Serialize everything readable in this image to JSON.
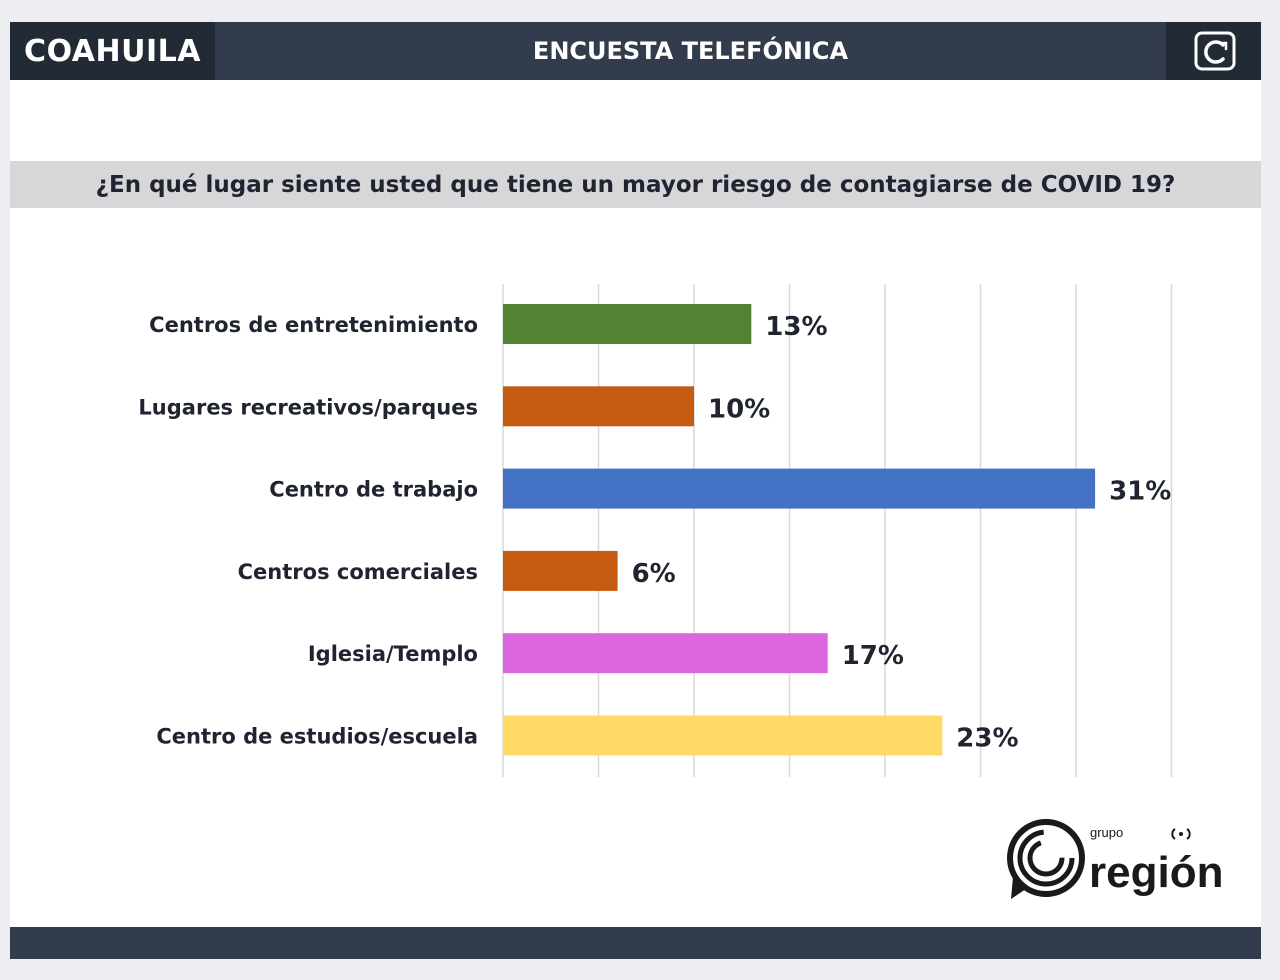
{
  "header": {
    "state": "COAHUILA",
    "title": "ENCUESTA TELEFÓNICA"
  },
  "question": "¿En qué lugar siente usted que tiene un mayor riesgo de contagiarse de COVID 19?",
  "brand": {
    "small": "grupo",
    "name": "región"
  },
  "colors": {
    "header_bg": "#323c4d",
    "header_dark": "#222a36",
    "question_bg": "#d7d7da",
    "text": "#1f2430"
  },
  "chart_data": {
    "type": "bar",
    "orientation": "horizontal",
    "categories": [
      "Centros de entretenimiento",
      "Lugares recreativos/parques",
      "Centro de trabajo",
      "Centros comerciales",
      "Iglesia/Templo",
      "Centro de estudios/escuela"
    ],
    "values": [
      13,
      10,
      31,
      6,
      17,
      23
    ],
    "data_labels": [
      "13%",
      "10%",
      "31%",
      "6%",
      "17%",
      "23%"
    ],
    "bar_colors": [
      "#548235",
      "#c55a11",
      "#4472c4",
      "#c55a11",
      "#dc66e0",
      "#ffd966"
    ],
    "xlim": [
      0,
      35
    ],
    "grid": true,
    "gridline_step": 5,
    "legend": "none"
  }
}
